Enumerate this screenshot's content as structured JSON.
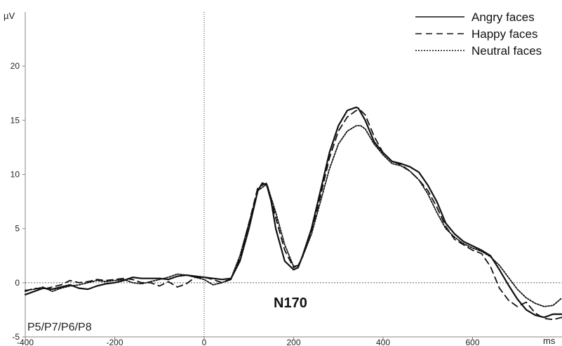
{
  "chart_data": {
    "type": "line",
    "x_unit": "ms",
    "y_unit": "µV",
    "xlim": [
      -400,
      800
    ],
    "ylim": [
      -5,
      25
    ],
    "x_ticks": [
      -400,
      -200,
      0,
      200,
      400,
      600
    ],
    "y_ticks": [
      -5,
      0,
      5,
      10,
      15,
      20
    ],
    "grid": false,
    "legend_position": "top-right",
    "annotations": [
      "N170",
      "P5/P7/P6/P8"
    ],
    "series": [
      {
        "name": "Angry faces",
        "style": "solid",
        "x": [
          -400,
          -380,
          -360,
          -340,
          -320,
          -300,
          -280,
          -260,
          -240,
          -220,
          -200,
          -180,
          -160,
          -140,
          -120,
          -100,
          -80,
          -60,
          -40,
          -20,
          0,
          20,
          40,
          60,
          80,
          100,
          120,
          130,
          140,
          150,
          160,
          180,
          200,
          210,
          220,
          240,
          260,
          280,
          300,
          320,
          340,
          345,
          360,
          380,
          400,
          420,
          440,
          460,
          480,
          500,
          520,
          540,
          560,
          580,
          600,
          620,
          640,
          660,
          680,
          700,
          720,
          740,
          760,
          780,
          800
        ],
        "y": [
          -1.1,
          -0.8,
          -0.5,
          -0.6,
          -0.4,
          -0.2,
          -0.5,
          -0.6,
          -0.3,
          -0.1,
          0.0,
          0.2,
          0.5,
          0.4,
          0.4,
          0.4,
          0.3,
          0.6,
          0.7,
          0.6,
          0.5,
          0.4,
          0.3,
          0.4,
          2.0,
          5.0,
          8.5,
          9.2,
          9.0,
          7.5,
          5.0,
          2.0,
          1.2,
          1.4,
          2.5,
          5.0,
          8.5,
          12.0,
          14.5,
          15.9,
          16.2,
          16.1,
          15.0,
          13.0,
          12.0,
          11.2,
          11.0,
          10.7,
          10.2,
          9.0,
          7.5,
          5.5,
          4.5,
          3.8,
          3.4,
          3.0,
          2.5,
          1.2,
          -0.2,
          -1.5,
          -2.5,
          -3.0,
          -3.2,
          -2.9,
          -2.9
        ]
      },
      {
        "name": "Happy faces",
        "style": "dashed",
        "x": [
          -400,
          -380,
          -360,
          -340,
          -320,
          -300,
          -280,
          -260,
          -240,
          -220,
          -200,
          -180,
          -160,
          -140,
          -120,
          -100,
          -80,
          -60,
          -40,
          -20,
          0,
          20,
          40,
          60,
          80,
          100,
          120,
          140,
          160,
          180,
          200,
          210,
          220,
          240,
          260,
          280,
          300,
          320,
          340,
          350,
          360,
          380,
          400,
          420,
          440,
          460,
          480,
          500,
          520,
          540,
          560,
          580,
          600,
          620,
          640,
          660,
          680,
          700,
          720,
          740,
          760,
          780,
          800
        ],
        "y": [
          -0.8,
          -0.5,
          -0.6,
          -0.4,
          -0.2,
          0.2,
          0.0,
          0.1,
          0.3,
          0.2,
          0.3,
          0.4,
          0.3,
          0.0,
          0.0,
          -0.3,
          0.1,
          -0.4,
          -0.1,
          0.5,
          0.5,
          0.3,
          0.0,
          0.3,
          2.3,
          5.5,
          8.8,
          9.2,
          6.0,
          3.0,
          1.4,
          1.6,
          2.4,
          4.8,
          8.0,
          11.5,
          14.0,
          15.3,
          15.9,
          15.9,
          15.5,
          13.5,
          12.0,
          11.2,
          10.9,
          10.3,
          9.5,
          8.5,
          7.0,
          5.2,
          4.0,
          3.5,
          3.0,
          2.7,
          1.5,
          -0.5,
          -1.6,
          -2.2,
          -1.8,
          -2.8,
          -3.3,
          -3.4,
          -3.2
        ]
      },
      {
        "name": "Neutral faces",
        "style": "dotted",
        "x": [
          -400,
          -380,
          -360,
          -340,
          -320,
          -300,
          -280,
          -260,
          -240,
          -220,
          -200,
          -180,
          -160,
          -140,
          -120,
          -100,
          -80,
          -60,
          -40,
          -20,
          0,
          20,
          40,
          60,
          80,
          100,
          120,
          140,
          160,
          180,
          200,
          210,
          220,
          240,
          260,
          280,
          300,
          320,
          340,
          350,
          360,
          380,
          400,
          420,
          440,
          460,
          480,
          500,
          520,
          540,
          560,
          580,
          600,
          620,
          640,
          660,
          680,
          700,
          720,
          740,
          760,
          780,
          800
        ],
        "y": [
          -0.7,
          -0.6,
          -0.4,
          -0.8,
          -0.5,
          -0.3,
          -0.2,
          0.0,
          0.2,
          0.1,
          0.2,
          0.3,
          0.0,
          -0.1,
          0.1,
          0.3,
          0.5,
          0.8,
          0.7,
          0.5,
          0.3,
          -0.2,
          0.0,
          0.4,
          2.5,
          5.5,
          8.5,
          9.1,
          6.5,
          3.5,
          1.5,
          1.6,
          2.4,
          4.5,
          7.5,
          10.5,
          12.8,
          14.0,
          14.5,
          14.5,
          14.2,
          12.8,
          11.8,
          11.0,
          10.8,
          10.3,
          9.5,
          8.2,
          6.5,
          5.0,
          4.2,
          3.6,
          3.2,
          2.9,
          2.4,
          1.6,
          0.5,
          -0.6,
          -1.4,
          -1.9,
          -2.2,
          -2.1,
          -1.4
        ]
      }
    ]
  }
}
